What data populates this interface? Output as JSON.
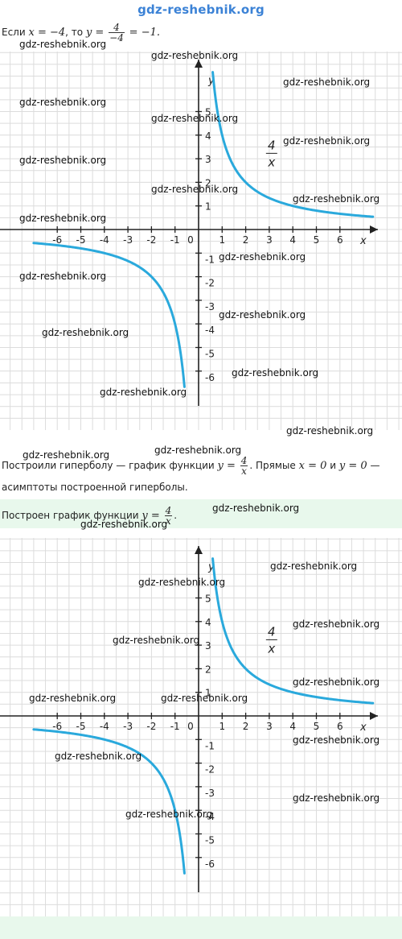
{
  "header": {
    "site": "gdz-reshebnik.org"
  },
  "step1": {
    "prefix": "Если",
    "x_expr": "x = −4",
    "sep": ", то",
    "y_lhs": "y =",
    "frac_num": "4",
    "frac_den": "−4",
    "result": "= −1."
  },
  "step2": {
    "prefix": "Построили гиперболу — график функции",
    "y_lhs": "y =",
    "frac_num": "4",
    "frac_den": "x",
    "mid": ". Прямые",
    "a1": "x = 0",
    "conj": "и",
    "a2": "y = 0",
    "dash": "—",
    "line2": "асимптоты построенной гиперболы."
  },
  "answer": {
    "prefix": "Построен график функции",
    "y_lhs": "y =",
    "frac_num": "4",
    "frac_den": "x",
    "suffix": "."
  },
  "chart_data": [
    {
      "type": "line",
      "function": "y = 4/x",
      "curve_label": {
        "num": "4",
        "den": "x"
      },
      "xlabel": "x",
      "ylabel": "y",
      "xlim": [
        -7,
        7
      ],
      "ylim": [
        -7,
        7
      ],
      "x_ticks": [
        "-6",
        "-5",
        "-4",
        "-3",
        "-2",
        "-1",
        "0",
        "1",
        "2",
        "3",
        "4",
        "5",
        "6"
      ],
      "y_ticks": [
        "5",
        "4",
        "3",
        "2",
        "1",
        "-1",
        "-2",
        "-3",
        "-4",
        "-5",
        "-6"
      ],
      "grid": true,
      "color": "#2aa9dc",
      "branch_positive": {
        "x_from": 0.6,
        "x_to": 7.4
      },
      "branch_negative": {
        "x_from": -7,
        "x_to": -0.6
      }
    },
    {
      "type": "line",
      "function": "y = 4/x",
      "curve_label": {
        "num": "4",
        "den": "x"
      },
      "xlabel": "x",
      "ylabel": "y",
      "xlim": [
        -7,
        7
      ],
      "ylim": [
        -7,
        7
      ],
      "x_ticks": [
        "-6",
        "-5",
        "-4",
        "-3",
        "-2",
        "-1",
        "0",
        "1",
        "2",
        "3",
        "4",
        "5",
        "6"
      ],
      "y_ticks": [
        "5",
        "4",
        "3",
        "2",
        "1",
        "-1",
        "-2",
        "-3",
        "-4",
        "-5",
        "-6"
      ],
      "grid": true,
      "color": "#2aa9dc",
      "branch_positive": {
        "x_from": 0.6,
        "x_to": 7.4
      },
      "branch_negative": {
        "x_from": -7,
        "x_to": -0.6
      }
    }
  ],
  "watermark": "gdz-reshebnik.org"
}
